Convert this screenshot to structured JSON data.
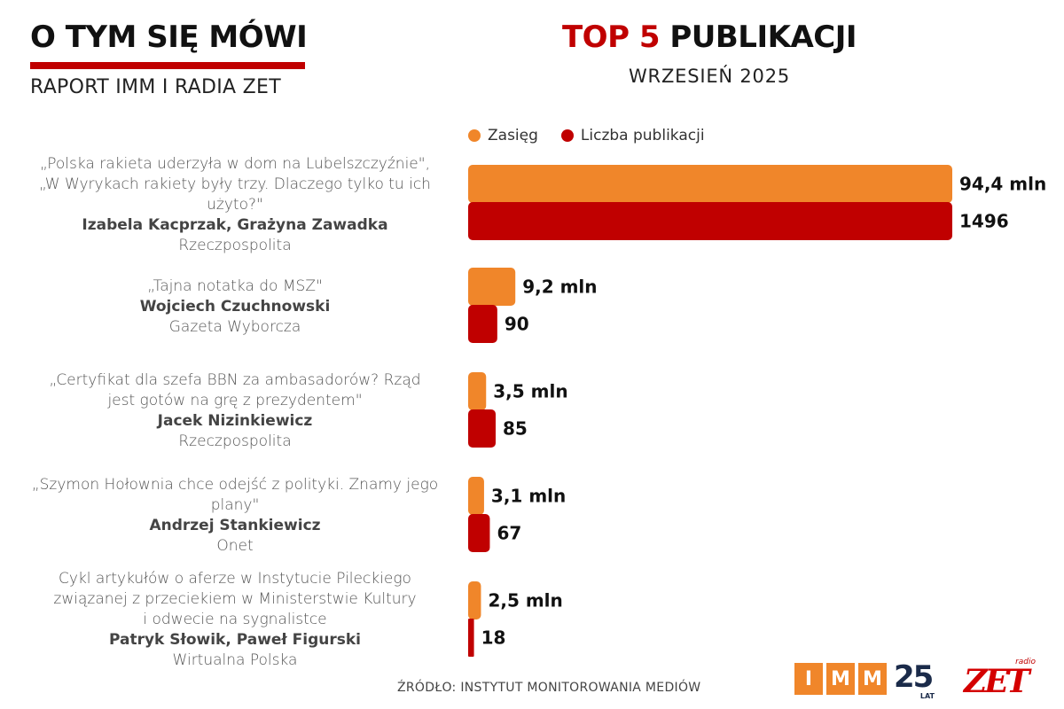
{
  "header": {
    "brand_title": "O TYM SIĘ MÓWI",
    "brand_subtitle": "RAPORT IMM I RADIA ZET",
    "title_highlight": "TOP 5",
    "title_rest": "PUBLIKACJI",
    "subtitle": "WRZESIEŃ 2025"
  },
  "items": [
    {
      "title_lines": [
        "„Polska rakieta uderzyła w dom na Lubelszczyźnie\",",
        "„W Wyrykach rakiety były trzy. Dlaczego tylko tu ich",
        "użyto?\""
      ],
      "authors": "Izabela Kacprzak, Grażyna Zawadka",
      "outlet": "Rzeczpospolita"
    },
    {
      "title_lines": [
        "„Tajna notatka do MSZ\""
      ],
      "authors": "Wojciech Czuchnowski",
      "outlet": "Gazeta Wyborcza"
    },
    {
      "title_lines": [
        "„Certyfikat dla szefa BBN za ambasadorów? Rząd",
        "jest gotów na grę z prezydentem\""
      ],
      "authors": "Jacek Nizinkiewicz",
      "outlet": "Rzeczpospolita"
    },
    {
      "title_lines": [
        "„Szymon Hołownia chce odejść z polityki. Znamy jego",
        "plany\""
      ],
      "authors": "Andrzej Stankiewicz",
      "outlet": "Onet"
    },
    {
      "title_lines": [
        "Cykl artykułów o aferze w Instytucie Pileckiego",
        "związanej z przeciekiem w Ministerstwie Kultury",
        "i odwecie na sygnalistce"
      ],
      "authors": "Patryk Słowik, Paweł Figurski",
      "outlet": "Wirtualna Polska"
    }
  ],
  "chart_data": {
    "type": "bar",
    "orientation": "horizontal",
    "categories": [
      "Izabela Kacprzak, Grażyna Zawadka",
      "Wojciech Czuchnowski",
      "Jacek Nizinkiewicz",
      "Andrzej Stankiewicz",
      "Patryk Słowik, Paweł Figurski"
    ],
    "series": [
      {
        "name": "Zasięg",
        "color": "#f0862a",
        "values": [
          94.4,
          9.2,
          3.5,
          3.1,
          2.5
        ],
        "labels": [
          "94,4 mln",
          "9,2 mln",
          "3,5 mln",
          "3,1 mln",
          "2,5 mln"
        ]
      },
      {
        "name": "Liczba publikacji",
        "color": "#c00000",
        "values": [
          1496,
          90,
          85,
          67,
          18
        ],
        "labels": [
          "1496",
          "90",
          "85",
          "67",
          "18"
        ]
      }
    ],
    "legend_position": "top",
    "grid": false,
    "axes_visible": false
  },
  "footer": {
    "source": "ŹRÓDŁO: INSTYTUT MONITOROWANIA MEDIÓW",
    "imm_letters": [
      "I",
      "M",
      "M"
    ],
    "imm_years": "25",
    "imm_years_caption": "LAT",
    "radio_small": "radio",
    "radio_logo": "ZET"
  }
}
